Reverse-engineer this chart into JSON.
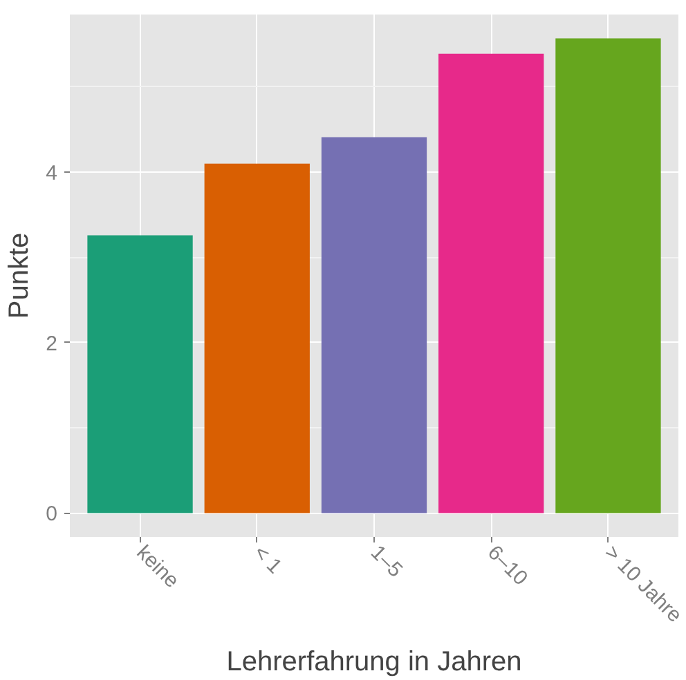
{
  "chart_data": {
    "type": "bar",
    "xlabel": "Lehrerfahrung in Jahren",
    "ylabel": "Punkte",
    "categories": [
      "keine",
      "< 1",
      "1–5",
      "6–10",
      "> 10 Jahre"
    ],
    "values": [
      3.26,
      4.1,
      4.41,
      5.39,
      5.57
    ],
    "colors": [
      "#1b9e77",
      "#d95f02",
      "#7570b3",
      "#e7298a",
      "#66a61e"
    ],
    "ylim": [
      -0.28,
      5.85
    ],
    "yticks": [
      0,
      2,
      4
    ],
    "grid": true
  }
}
